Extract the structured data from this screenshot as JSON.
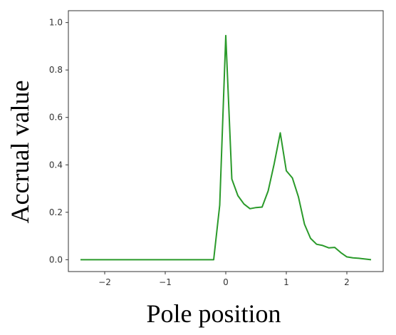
{
  "chart_data": {
    "type": "line",
    "title": "",
    "xlabel": "Pole position",
    "ylabel": "Accrual value",
    "xlim": [
      -2.6,
      2.6
    ],
    "ylim": [
      -0.05,
      1.05
    ],
    "grid": false,
    "xticks": [
      {
        "value": -2,
        "label": "−2"
      },
      {
        "value": -1,
        "label": "−1"
      },
      {
        "value": 0,
        "label": "0"
      },
      {
        "value": 1,
        "label": "1"
      },
      {
        "value": 2,
        "label": "2"
      }
    ],
    "yticks": [
      {
        "value": 0.0,
        "label": "0.0"
      },
      {
        "value": 0.2,
        "label": "0.2"
      },
      {
        "value": 0.4,
        "label": "0.4"
      },
      {
        "value": 0.6,
        "label": "0.6"
      },
      {
        "value": 0.8,
        "label": "0.8"
      },
      {
        "value": 1.0,
        "label": "1.0"
      }
    ],
    "series": [
      {
        "color": "#2a9a2a",
        "x": [
          -2.4,
          -2.2,
          -2.0,
          -1.8,
          -1.6,
          -1.4,
          -1.2,
          -1.0,
          -0.8,
          -0.6,
          -0.4,
          -0.2,
          -0.1,
          0.0,
          0.1,
          0.2,
          0.3,
          0.4,
          0.5,
          0.6,
          0.7,
          0.8,
          0.9,
          1.0,
          1.1,
          1.2,
          1.3,
          1.4,
          1.5,
          1.6,
          1.7,
          1.8,
          1.9,
          2.0,
          2.1,
          2.2,
          2.3,
          2.4
        ],
        "y": [
          0.0,
          0.0,
          0.0,
          0.0,
          0.0,
          0.0,
          0.0,
          0.0,
          0.0,
          0.0,
          0.0,
          0.0,
          0.23,
          0.945,
          0.34,
          0.27,
          0.235,
          0.215,
          0.22,
          0.222,
          0.29,
          0.405,
          0.535,
          0.375,
          0.345,
          0.265,
          0.15,
          0.09,
          0.065,
          0.06,
          0.05,
          0.052,
          0.03,
          0.012,
          0.008,
          0.006,
          0.003,
          0.0
        ]
      }
    ]
  }
}
